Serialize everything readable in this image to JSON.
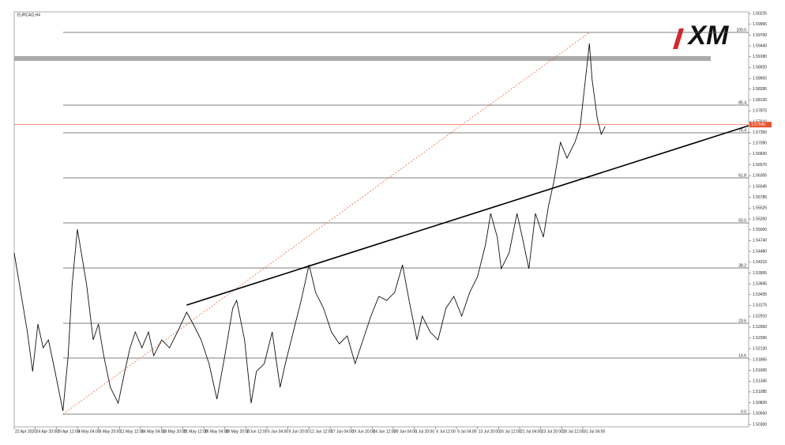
{
  "chart_data": {
    "type": "line",
    "title": "EURCAD,H4",
    "logo": "XM",
    "color": "#111111",
    "xlim": [
      0,
      558
    ],
    "ylim": [
      1.503,
      1.60225
    ],
    "x": [
      0,
      4,
      10,
      14,
      18,
      22,
      26,
      31,
      37,
      41,
      44,
      48,
      52,
      55,
      60,
      64,
      68,
      73,
      79,
      84,
      88,
      92,
      97,
      102,
      106,
      112,
      118,
      124,
      131,
      136,
      142,
      148,
      154,
      160,
      166,
      169,
      175,
      180,
      184,
      190,
      196,
      202,
      206,
      212,
      218,
      224,
      229,
      235,
      241,
      247,
      253,
      259,
      265,
      271,
      277,
      283,
      289,
      295,
      300,
      306,
      310,
      316,
      322,
      328,
      334,
      340,
      346,
      352,
      358,
      362,
      367,
      370,
      376,
      382,
      386,
      391,
      396,
      402,
      406,
      410,
      415,
      420,
      426,
      430,
      434,
      437,
      439,
      443,
      446,
      449
    ],
    "values": [
      1.54442,
      1.53678,
      1.52533,
      1.51579,
      1.52724,
      1.52151,
      1.52342,
      1.51579,
      1.50624,
      1.5196,
      1.53678,
      1.55014,
      1.54251,
      1.53678,
      1.52342,
      1.52724,
      1.5196,
      1.51197,
      1.50815,
      1.51579,
      1.52151,
      1.52533,
      1.52151,
      1.52533,
      1.5196,
      1.52342,
      1.52151,
      1.52533,
      1.5301,
      1.52724,
      1.52342,
      1.51769,
      1.50911,
      1.5196,
      1.53106,
      1.53296,
      1.52342,
      1.50815,
      1.51579,
      1.51769,
      1.52533,
      1.51197,
      1.51769,
      1.52533,
      1.53296,
      1.54155,
      1.53487,
      1.53106,
      1.52533,
      1.52247,
      1.52438,
      1.51769,
      1.52342,
      1.52915,
      1.53392,
      1.53296,
      1.53487,
      1.54155,
      1.53296,
      1.52342,
      1.52915,
      1.52533,
      1.52342,
      1.53106,
      1.53392,
      1.52915,
      1.53487,
      1.53869,
      1.54633,
      1.55396,
      1.54823,
      1.5406,
      1.54442,
      1.55396,
      1.54823,
      1.5406,
      1.55396,
      1.54823,
      1.55587,
      1.56159,
      1.57114,
      1.56732,
      1.57114,
      1.57496,
      1.58641,
      1.595,
      1.58641,
      1.57686,
      1.57305,
      1.57496
    ],
    "current_price": {
      "value": 1.5754,
      "label": "1.57540",
      "color": "#e8542c"
    },
    "levels": [
      {
        "value": 1.59767,
        "label": "100.0"
      },
      {
        "value": 1.58011,
        "label": "85.4"
      },
      {
        "value": 1.57343,
        "label": "76.4"
      },
      {
        "value": 1.56255,
        "label": "61.8"
      },
      {
        "value": 1.55167,
        "label": "50.0"
      },
      {
        "value": 1.54079,
        "label": "38.2"
      },
      {
        "value": 1.52743,
        "label": "23.6"
      },
      {
        "value": 1.51903,
        "label": "14.6"
      },
      {
        "value": 1.50548,
        "label": "0.0"
      }
    ],
    "level_color": "#555555",
    "band": {
      "value": 1.59137,
      "color": "#aaaaaa"
    },
    "trendline": {
      "x": [
        131,
        558
      ],
      "values": [
        1.53182,
        1.57515
      ],
      "color": "#000000"
    },
    "fib_line": {
      "x": [
        37,
        437
      ],
      "values": [
        1.50548,
        1.59767
      ],
      "color": "#e8542c"
    },
    "yticks": [
      {
        "value": 1.60225,
        "label": "1.60225"
      },
      {
        "value": 1.59965,
        "label": "1.59965"
      },
      {
        "value": 1.597,
        "label": "1.59700"
      },
      {
        "value": 1.5944,
        "label": "1.59440"
      },
      {
        "value": 1.5918,
        "label": "1.59180"
      },
      {
        "value": 1.5892,
        "label": "1.58920"
      },
      {
        "value": 1.58655,
        "label": "1.58655"
      },
      {
        "value": 1.58395,
        "label": "1.58395"
      },
      {
        "value": 1.58135,
        "label": "1.58135"
      },
      {
        "value": 1.57875,
        "label": "1.57875"
      },
      {
        "value": 1.5761,
        "label": "1.57610"
      },
      {
        "value": 1.5735,
        "label": "1.57350"
      },
      {
        "value": 1.5709,
        "label": "1.57090"
      },
      {
        "value": 1.5683,
        "label": "1.56830"
      },
      {
        "value": 1.5657,
        "label": "1.56570"
      },
      {
        "value": 1.56305,
        "label": "1.56305"
      },
      {
        "value": 1.56045,
        "label": "1.56045"
      },
      {
        "value": 1.55785,
        "label": "1.55785"
      },
      {
        "value": 1.55525,
        "label": "1.55525"
      },
      {
        "value": 1.5526,
        "label": "1.55260"
      },
      {
        "value": 1.55,
        "label": "1.55000"
      },
      {
        "value": 1.5474,
        "label": "1.54740"
      },
      {
        "value": 1.5448,
        "label": "1.54480"
      },
      {
        "value": 1.54215,
        "label": "1.54215"
      },
      {
        "value": 1.53955,
        "label": "1.53955"
      },
      {
        "value": 1.53695,
        "label": "1.53695"
      },
      {
        "value": 1.53435,
        "label": "1.53435"
      },
      {
        "value": 1.53175,
        "label": "1.53175"
      },
      {
        "value": 1.5291,
        "label": "1.52910"
      },
      {
        "value": 1.5265,
        "label": "1.52650"
      },
      {
        "value": 1.5239,
        "label": "1.52390"
      },
      {
        "value": 1.5213,
        "label": "1.52130"
      },
      {
        "value": 1.51865,
        "label": "1.51865"
      },
      {
        "value": 1.51605,
        "label": "1.51605"
      },
      {
        "value": 1.51345,
        "label": "1.51345"
      },
      {
        "value": 1.51085,
        "label": "1.51085"
      },
      {
        "value": 1.5082,
        "label": "1.50820"
      },
      {
        "value": 1.5056,
        "label": "1.50560"
      },
      {
        "value": 1.503,
        "label": "1.50300"
      }
    ],
    "xticks": [
      {
        "value": 0,
        "label": "22 Apr 2020"
      },
      {
        "value": 16,
        "label": "24 Apr 20:00"
      },
      {
        "value": 32,
        "label": "29 Apr 12:00"
      },
      {
        "value": 48,
        "label": "4 May 04:00"
      },
      {
        "value": 64,
        "label": "6 May 20:00"
      },
      {
        "value": 80,
        "label": "11 May 12:00"
      },
      {
        "value": 96,
        "label": "14 May 04:00"
      },
      {
        "value": 112,
        "label": "18 May 20:00"
      },
      {
        "value": 128,
        "label": "21 May 12:00"
      },
      {
        "value": 144,
        "label": "26 May 04:00"
      },
      {
        "value": 160,
        "label": "28 May 20:00"
      },
      {
        "value": 176,
        "label": "2 Jun 12:00"
      },
      {
        "value": 192,
        "label": "5 Jun 04:00"
      },
      {
        "value": 208,
        "label": "9 Jun 20:00"
      },
      {
        "value": 224,
        "label": "12 Jun 12:00"
      },
      {
        "value": 240,
        "label": "17 Jun 04:00"
      },
      {
        "value": 256,
        "label": "19 Jun 20:00"
      },
      {
        "value": 272,
        "label": "24 Jun 12:00"
      },
      {
        "value": 288,
        "label": "29 Jun 04:00"
      },
      {
        "value": 304,
        "label": "1 Jul 20:00"
      },
      {
        "value": 320,
        "label": "6 Jul 12:00"
      },
      {
        "value": 336,
        "label": "9 Jul 04:00"
      },
      {
        "value": 352,
        "label": "13 Jul 20:00"
      },
      {
        "value": 368,
        "label": "16 Jul 12:00"
      },
      {
        "value": 384,
        "label": "21 Jul 04:00"
      },
      {
        "value": 400,
        "label": "23 Jul 20:00"
      },
      {
        "value": 416,
        "label": "28 Jul 12:00"
      },
      {
        "value": 432,
        "label": "31 Jul 04:00"
      }
    ]
  }
}
